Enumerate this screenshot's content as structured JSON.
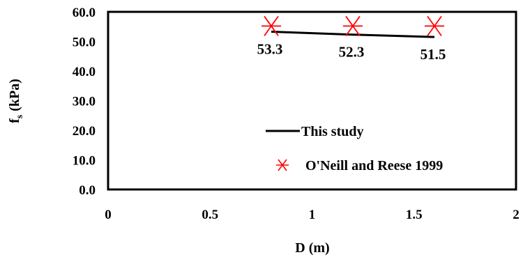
{
  "chart_data": {
    "type": "line",
    "title": "",
    "xlabel": "D (m)",
    "ylabel": {
      "main": "f",
      "sub": "s",
      "rest": " (kPa)"
    },
    "xlim": [
      0,
      2
    ],
    "ylim": [
      0,
      60
    ],
    "x_ticks": [
      "0",
      "0.5",
      "1",
      "1.5",
      "2"
    ],
    "x_tick_values": [
      0,
      0.5,
      1,
      1.5,
      2
    ],
    "y_ticks": [
      "0.0",
      "10.0",
      "20.0",
      "30.0",
      "40.0",
      "50.0",
      "60.0"
    ],
    "y_tick_values": [
      0,
      10,
      20,
      30,
      40,
      50,
      60
    ],
    "grid": false,
    "legend_position": "bottom-right inside plot",
    "series": [
      {
        "name": "This study",
        "kind": "line",
        "color": "#000000",
        "x": [
          0.8,
          1.2,
          1.6
        ],
        "y": [
          53.3,
          52.3,
          51.5
        ],
        "data_labels": [
          "53.3",
          "52.3",
          "51.5"
        ]
      },
      {
        "name": "O'Neill and Reese 1999",
        "kind": "marker",
        "marker": "asterisk",
        "color": "#ff0000",
        "x": [
          0.8,
          1.2,
          1.6
        ],
        "y": [
          55.2,
          55.2,
          55.2
        ]
      }
    ]
  }
}
